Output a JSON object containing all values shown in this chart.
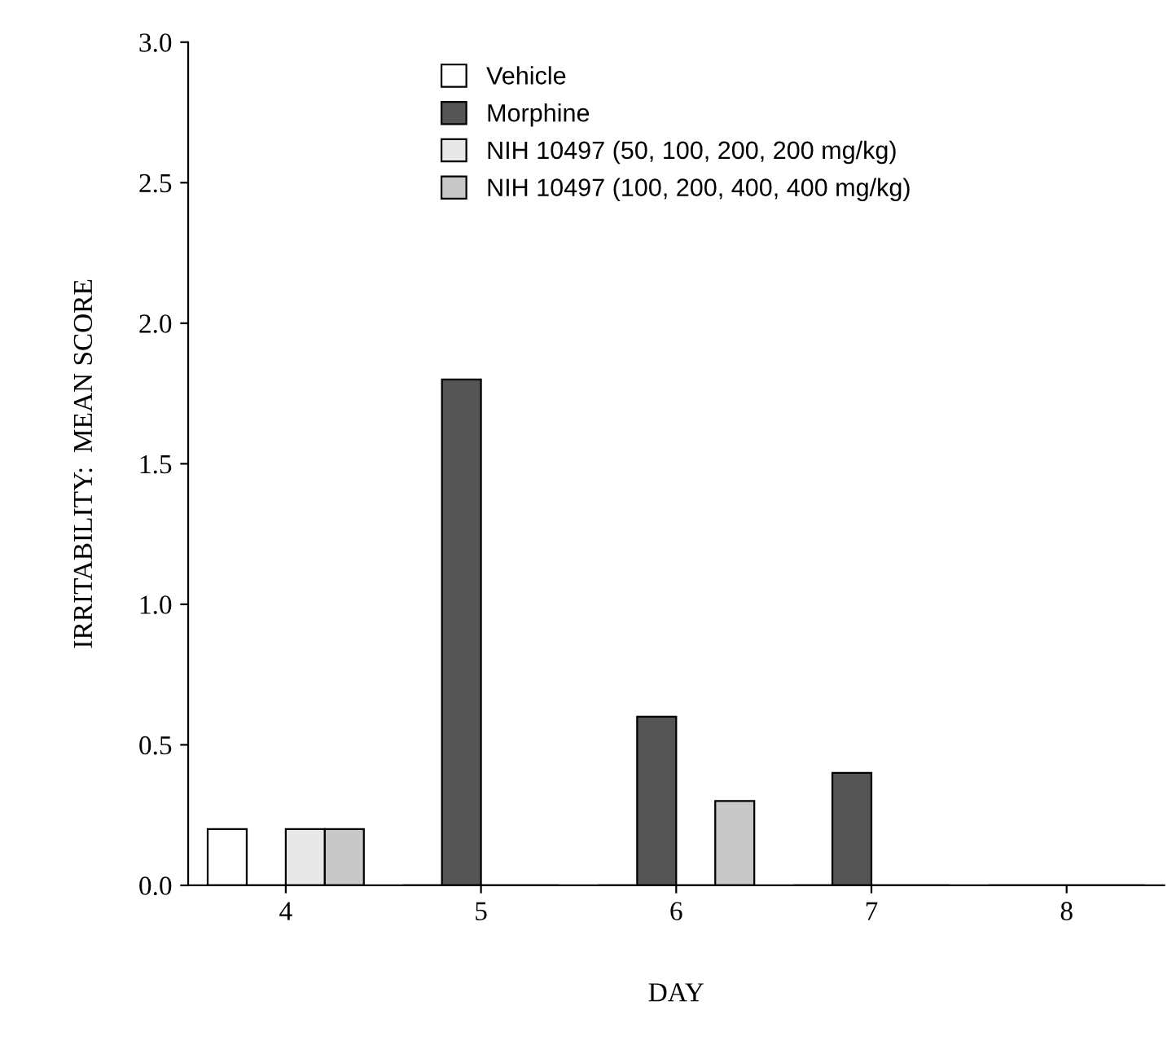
{
  "chart_data": {
    "type": "bar",
    "xlabel": "DAY",
    "ylabel": "IRRITABILITY:  MEAN SCORE",
    "categories": [
      "4",
      "5",
      "6",
      "7",
      "8"
    ],
    "series": [
      {
        "name": "Vehicle",
        "color": "#ffffff",
        "values": [
          0.2,
          0,
          0,
          0,
          0
        ]
      },
      {
        "name": "Morphine",
        "color": "#555555",
        "values": [
          0,
          1.8,
          0.6,
          0.4,
          0
        ]
      },
      {
        "name": "NIH 10497 (50, 100, 200, 200 mg/kg)",
        "color": "#e8e8e8",
        "values": [
          0.2,
          0,
          0,
          0,
          0
        ]
      },
      {
        "name": "NIH 10497 (100, 200, 400, 400 mg/kg)",
        "color": "#c8c8c8",
        "values": [
          0.2,
          0,
          0.3,
          0,
          0
        ]
      }
    ],
    "ylim": [
      0,
      3.0
    ],
    "yticks": [
      {
        "value": 0,
        "label": "0.0"
      },
      {
        "value": 0.5,
        "label": "0.5"
      },
      {
        "value": 1.0,
        "label": "1.0"
      },
      {
        "value": 1.5,
        "label": "1.5"
      },
      {
        "value": 2.0,
        "label": "2.0"
      },
      {
        "value": 2.5,
        "label": "2.5"
      },
      {
        "value": 3.0,
        "label": "3.0"
      }
    ],
    "grid": false,
    "legend": "top"
  }
}
